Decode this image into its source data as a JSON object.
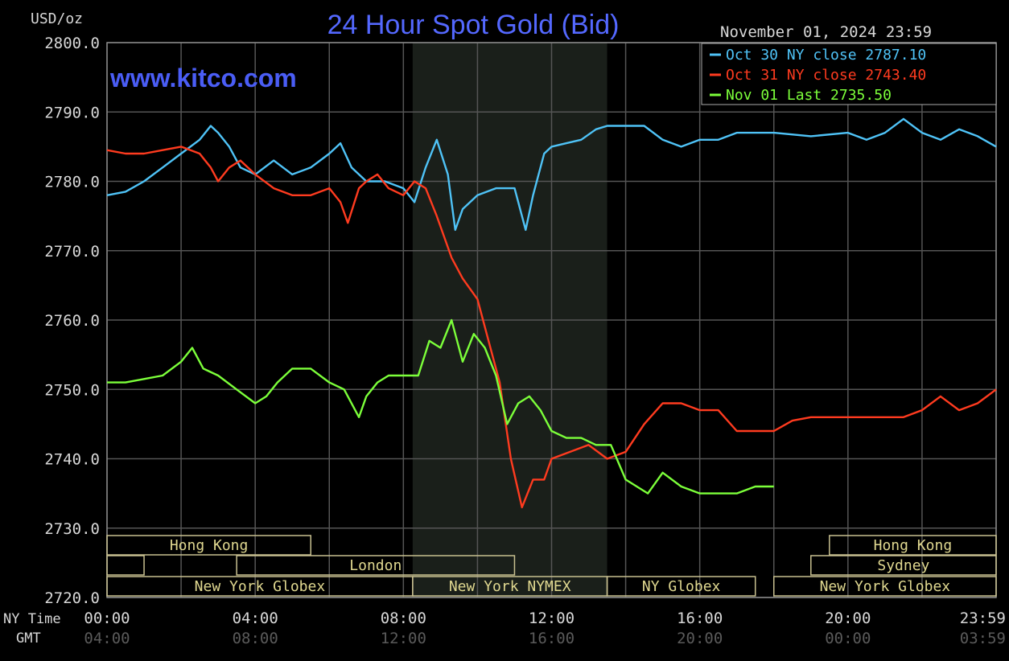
{
  "chart_data": {
    "type": "line",
    "title": "24 Hour Spot Gold (Bid)",
    "watermark": "www.kitco.com",
    "timestamp": "November 01, 2024 23:59",
    "ylabel": "USD/oz",
    "ylim": [
      2720,
      2800
    ],
    "y_ticks": [
      "2800.0",
      "2790.0",
      "2780.0",
      "2770.0",
      "2760.0",
      "2750.0",
      "2740.0",
      "2730.0",
      "2720.0"
    ],
    "y_tick_values": [
      2800,
      2790,
      2780,
      2770,
      2760,
      2750,
      2740,
      2730,
      2720
    ],
    "xlim": [
      0,
      24
    ],
    "x_ticks_label_ny": "NY Time",
    "x_ticks_label_gmt": "GMT",
    "x_ticks": [
      {
        "hour": 0,
        "ny": "00:00",
        "gmt": "04:00"
      },
      {
        "hour": 4,
        "ny": "04:00",
        "gmt": "08:00"
      },
      {
        "hour": 8,
        "ny": "08:00",
        "gmt": "12:00"
      },
      {
        "hour": 12,
        "ny": "12:00",
        "gmt": "16:00"
      },
      {
        "hour": 16,
        "ny": "16:00",
        "gmt": "20:00"
      },
      {
        "hour": 20,
        "ny": "20:00",
        "gmt": "00:00"
      },
      {
        "hour": 24,
        "ny": "23:59",
        "gmt": "03:59"
      }
    ],
    "grid": true,
    "legend_position": "top-right",
    "highlight_range": [
      8.25,
      13.5
    ],
    "legend": [
      {
        "text": "Oct 30 NY close 2787.10",
        "color": "#4fc3f7"
      },
      {
        "text": "Oct 31 NY close 2743.40",
        "color": "#ff3b1f"
      },
      {
        "text": "Nov 01 Last 2735.50",
        "color": "#7cff3a"
      }
    ],
    "series": [
      {
        "color": "#4fc3f7",
        "x": [
          0,
          0.5,
          1,
          1.5,
          2,
          2.5,
          2.8,
          3,
          3.3,
          3.6,
          4,
          4.5,
          5,
          5.5,
          6,
          6.3,
          6.6,
          7,
          7.5,
          8,
          8.3,
          8.6,
          8.9,
          9.2,
          9.4,
          9.6,
          10,
          10.5,
          11,
          11.3,
          11.5,
          11.8,
          12,
          12.4,
          12.8,
          13.2,
          13.5,
          14,
          14.5,
          15,
          15.5,
          16,
          16.5,
          17,
          18,
          19,
          20,
          20.5,
          21,
          21.5,
          22,
          22.5,
          23,
          23.5,
          24
        ],
        "values": [
          2778,
          2778.5,
          2780,
          2782,
          2784,
          2786,
          2788,
          2787,
          2785,
          2782,
          2781,
          2783,
          2781,
          2782,
          2784,
          2785.5,
          2782,
          2780,
          2780,
          2779,
          2777,
          2782,
          2786,
          2781,
          2773,
          2776,
          2778,
          2779,
          2779,
          2773,
          2778,
          2784,
          2785,
          2785.5,
          2786,
          2787.5,
          2788,
          2788,
          2788,
          2786,
          2785,
          2786,
          2786,
          2787,
          2787,
          2786.5,
          2787,
          2786,
          2787,
          2789,
          2787,
          2786,
          2787.5,
          2786.5,
          2785
        ]
      },
      {
        "color": "#ff3b1f",
        "x": [
          0,
          0.5,
          1,
          1.5,
          2,
          2.5,
          2.8,
          3,
          3.3,
          3.6,
          4,
          4.5,
          5,
          5.5,
          6,
          6.3,
          6.5,
          6.8,
          7,
          7.3,
          7.6,
          8,
          8.3,
          8.6,
          8.9,
          9.3,
          9.6,
          10,
          10.3,
          10.6,
          10.9,
          11.2,
          11.5,
          11.8,
          12,
          12.5,
          13,
          13.5,
          14,
          14.5,
          15,
          15.5,
          16,
          16.5,
          17,
          18,
          18.5,
          19,
          20,
          20.5,
          21,
          21.5,
          22,
          22.5,
          23,
          23.5,
          24
        ],
        "values": [
          2784.5,
          2784,
          2784,
          2784.5,
          2785,
          2784,
          2782,
          2780,
          2782,
          2783,
          2781,
          2779,
          2778,
          2778,
          2779,
          2777,
          2774,
          2779,
          2780,
          2781,
          2779,
          2778,
          2780,
          2779,
          2775,
          2769,
          2766,
          2763,
          2757,
          2751,
          2740,
          2733,
          2737,
          2737,
          2740,
          2741,
          2742,
          2740,
          2741,
          2745,
          2748,
          2748,
          2747,
          2747,
          2744,
          2744,
          2745.5,
          2746,
          2746,
          2746,
          2746,
          2746,
          2747,
          2749,
          2747,
          2748,
          2750
        ]
      },
      {
        "color": "#7cff3a",
        "x": [
          0,
          0.5,
          1,
          1.5,
          2,
          2.3,
          2.6,
          3,
          3.5,
          4,
          4.3,
          4.6,
          5,
          5.5,
          6,
          6.4,
          6.8,
          7,
          7.3,
          7.6,
          8,
          8.4,
          8.7,
          9,
          9.3,
          9.6,
          9.9,
          10.2,
          10.5,
          10.8,
          11.1,
          11.4,
          11.7,
          12,
          12.4,
          12.8,
          13.2,
          13.6,
          14,
          14.3,
          14.6,
          15,
          15.5,
          16,
          16.5,
          17,
          17.5,
          18
        ],
        "values": [
          2751,
          2751,
          2751.5,
          2752,
          2754,
          2756,
          2753,
          2752,
          2750,
          2748,
          2749,
          2751,
          2753,
          2753,
          2751,
          2750,
          2746,
          2749,
          2751,
          2752,
          2752,
          2752,
          2757,
          2756,
          2760,
          2754,
          2758,
          2756,
          2752,
          2745,
          2748,
          2749,
          2747,
          2744,
          2743,
          2743,
          2742,
          2742,
          2737,
          2736,
          2735,
          2738,
          2736,
          2735,
          2735,
          2735,
          2736,
          2736
        ]
      }
    ],
    "sessions": [
      {
        "label": "Hong Kong",
        "row": 0,
        "start": 0,
        "end": 5.5
      },
      {
        "label": "",
        "row": 1,
        "start": 0,
        "end": 1
      },
      {
        "label": "London",
        "row": 1,
        "start": 3.5,
        "end": 11
      },
      {
        "label": "New York Globex",
        "row": 2,
        "start": 0,
        "end": 8.25
      },
      {
        "label": "New York NYMEX",
        "row": 2,
        "start": 8.25,
        "end": 13.5
      },
      {
        "label": "NY Globex",
        "row": 2,
        "start": 13.5,
        "end": 17.5
      },
      {
        "label": "Hong Kong",
        "row": 0,
        "start": 19.5,
        "end": 24
      },
      {
        "label": "Sydney",
        "row": 1,
        "start": 19,
        "end": 24
      },
      {
        "label": "New York Globex",
        "row": 2,
        "start": 18,
        "end": 24
      }
    ]
  }
}
